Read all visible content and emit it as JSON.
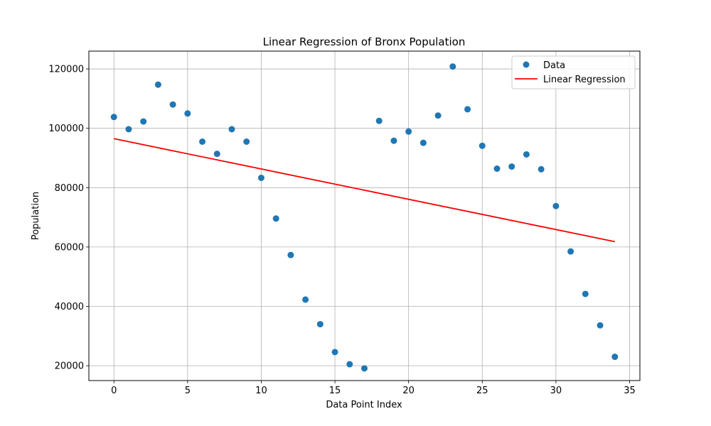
{
  "chart_data": {
    "type": "scatter",
    "title": "Linear Regression of Bronx Population",
    "xlabel": "Data Point Index",
    "ylabel": "Population",
    "xlim": [
      -1.7,
      35.7
    ],
    "ylim": [
      15000,
      126000
    ],
    "xticks": [
      0,
      5,
      10,
      15,
      20,
      25,
      30,
      35
    ],
    "yticks": [
      20000,
      40000,
      60000,
      80000,
      100000,
      120000
    ],
    "grid": true,
    "legend_position": "top-right",
    "series": [
      {
        "name": "Data",
        "kind": "scatter",
        "color": "#1f77b4",
        "x": [
          0,
          1,
          2,
          3,
          4,
          5,
          6,
          7,
          8,
          9,
          10,
          11,
          12,
          13,
          14,
          15,
          16,
          17,
          18,
          19,
          20,
          21,
          22,
          23,
          24,
          25,
          26,
          27,
          28,
          29,
          30,
          31,
          32,
          33,
          34
        ],
        "y": [
          103800,
          99700,
          102300,
          114700,
          108000,
          105000,
          95500,
          91400,
          99700,
          95500,
          83300,
          69600,
          57300,
          42300,
          34000,
          24600,
          20500,
          19100,
          102500,
          95800,
          98900,
          95100,
          104300,
          120800,
          106400,
          94100,
          86400,
          87100,
          91200,
          86200,
          73800,
          58500,
          44200,
          33600,
          23000
        ]
      },
      {
        "name": "Linear Regression",
        "kind": "line",
        "color": "#ff0000",
        "x": [
          0,
          34
        ],
        "y": [
          96500,
          61800
        ]
      }
    ]
  }
}
